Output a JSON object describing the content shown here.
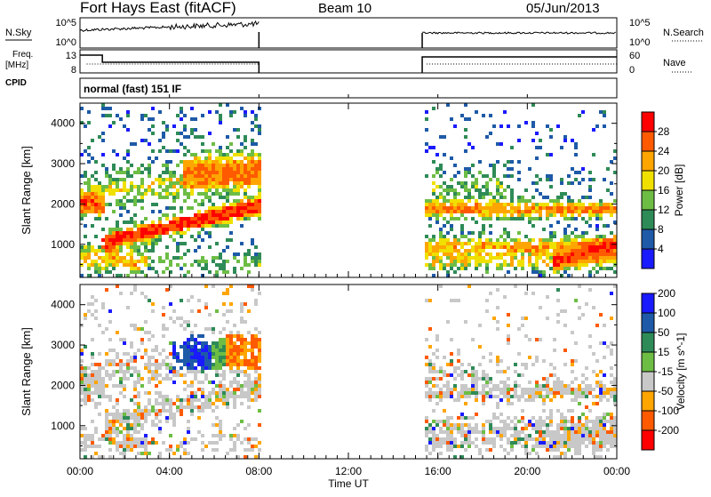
{
  "header": {
    "station": "Fort Hays East (fitACF)",
    "beam": "Beam 10",
    "date": "05/Jun/2013"
  },
  "panels": {
    "nsky": {
      "label": "N.Sky",
      "left_ticks": [
        "10^5",
        "10^0"
      ],
      "right_ticks": [
        "10^5",
        "10^0"
      ],
      "right_label": "N.Search"
    },
    "freq": {
      "label_top": "Freq.",
      "label_unit": "[MHz]",
      "left_ticks": [
        "13",
        "8"
      ],
      "right_ticks": [
        "60",
        "0"
      ],
      "right_label": "Nave"
    },
    "cpid": {
      "label": "CPID",
      "text": "normal (fast) 151 IF"
    }
  },
  "colors": {
    "power": [
      "#1a1aff",
      "#1e5aa8",
      "#2e8b57",
      "#6dbd45",
      "#f0e000",
      "#ffa500",
      "#ff5a00",
      "#ff0000"
    ],
    "velocity": [
      "#1a1aff",
      "#1e5aa8",
      "#2e8b57",
      "#6dbd45",
      "#c8c8c8",
      "#ffa500",
      "#ff5a00",
      "#ff0000"
    ],
    "ground_scatter": "#c8c8c8"
  },
  "chart_data": [
    {
      "type": "heatmap",
      "name": "Power",
      "ylabel": "Slant Range [km]",
      "colorbar_label": "Power [dB]",
      "colorbar_ticks": [
        "4",
        "8",
        "12",
        "16",
        "20",
        "24",
        "28"
      ],
      "yticks": [
        "1000",
        "2000",
        "3000",
        "4000"
      ],
      "ylim": [
        180,
        4500
      ],
      "xlim": [
        0,
        24
      ],
      "data_gaps_hours": [
        [
          8,
          15.3
        ]
      ]
    },
    {
      "type": "heatmap",
      "name": "Velocity",
      "ylabel": "Slant Range [km]",
      "colorbar_label": "Velocity [m s^-1]",
      "colorbar_ticks": [
        "-200",
        "-100",
        "-50",
        "-15",
        "15",
        "50",
        "100",
        "200"
      ],
      "yticks": [
        "1000",
        "2000",
        "3000",
        "4000"
      ],
      "ylim": [
        180,
        4500
      ],
      "xlim": [
        0,
        24
      ],
      "data_gaps_hours": [
        [
          8,
          15.3
        ]
      ]
    }
  ],
  "xaxis": {
    "label": "Time UT",
    "ticks": [
      "00:00",
      "04:00",
      "08:00",
      "12:00",
      "16:00",
      "20:00",
      "00:00"
    ],
    "tick_hours": [
      0,
      4,
      8,
      12,
      16,
      20,
      24
    ]
  }
}
